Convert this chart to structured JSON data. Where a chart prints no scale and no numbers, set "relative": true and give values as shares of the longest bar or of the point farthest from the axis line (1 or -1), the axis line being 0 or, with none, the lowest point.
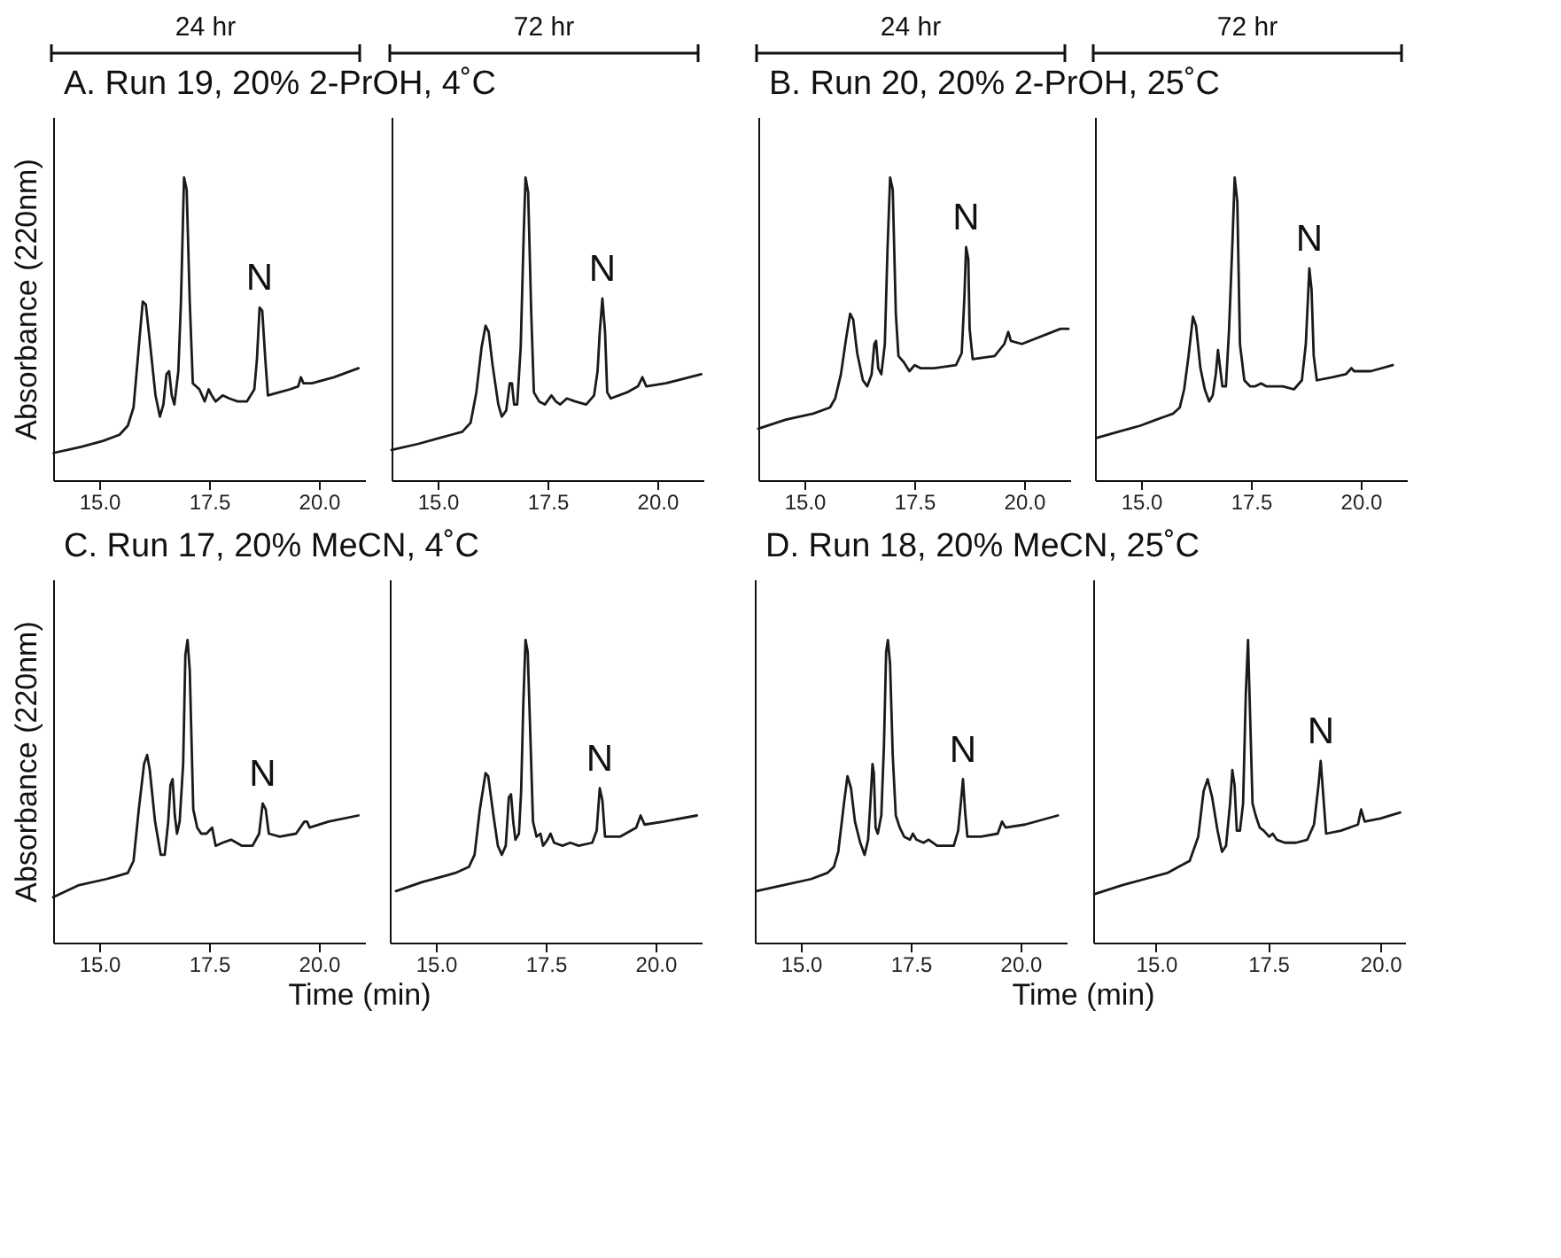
{
  "chart_data": [
    {
      "type": "line",
      "title": "A. Run 19, 20% 2-PrOH, 4˚C",
      "ylabel": "Absorbance (220nm)",
      "relative": true,
      "tick_labels": "x",
      "xlim": [
        13.95,
        21.05
      ],
      "xticks": [
        {
          "value": 15,
          "label": "15.0"
        },
        {
          "value": 17.5,
          "label": "17.5"
        },
        {
          "value": 20,
          "label": "20.0"
        }
      ],
      "annotations": [
        "24 hr",
        {
          "text": "N",
          "x": 18.65,
          "y": 0.57
        }
      ],
      "x": [
        13.96,
        14.59,
        15.09,
        15.46,
        15.65,
        15.78,
        15.9,
        15.99,
        16.06,
        16.15,
        16.28,
        16.38,
        16.46,
        16.53,
        16.59,
        16.65,
        16.71,
        16.8,
        16.86,
        16.93,
        16.99,
        17.06,
        17.13,
        17.28,
        17.4,
        17.49,
        17.56,
        17.65,
        17.81,
        17.96,
        18.15,
        18.36,
        18.53,
        18.59,
        18.65,
        18.71,
        18.78,
        18.84,
        19.09,
        19.34,
        19.53,
        19.59,
        19.65,
        19.84,
        20.34,
        20.9
      ],
      "series": [
        {
          "color": "#1a1a1a",
          "values": [
            0.09,
            0.11,
            0.13,
            0.15,
            0.18,
            0.24,
            0.44,
            0.59,
            0.58,
            0.46,
            0.28,
            0.21,
            0.25,
            0.35,
            0.36,
            0.28,
            0.25,
            0.36,
            0.59,
            1,
            0.96,
            0.59,
            0.32,
            0.3,
            0.26,
            0.3,
            0.28,
            0.26,
            0.28,
            0.27,
            0.26,
            0.26,
            0.3,
            0.4,
            0.57,
            0.56,
            0.4,
            0.28,
            0.29,
            0.3,
            0.31,
            0.34,
            0.32,
            0.32,
            0.34,
            0.37
          ]
        }
      ]
    },
    {
      "type": "line",
      "relative": true,
      "tick_labels": "x",
      "xlim": [
        13.95,
        21.05
      ],
      "xticks": [
        {
          "value": 15,
          "label": "15.0"
        },
        {
          "value": 17.5,
          "label": "17.5"
        },
        {
          "value": 20,
          "label": "20.0"
        }
      ],
      "annotations": [
        "72 hr",
        {
          "text": "N",
          "x": 18.75,
          "y": 0.6
        }
      ],
      "x": [
        13.95,
        14.56,
        15.06,
        15.31,
        15.56,
        15.75,
        15.88,
        16.0,
        16.09,
        16.16,
        16.25,
        16.38,
        16.46,
        16.56,
        16.64,
        16.69,
        16.74,
        16.81,
        16.89,
        16.96,
        17.0,
        17.06,
        17.13,
        17.19,
        17.31,
        17.44,
        17.59,
        17.69,
        17.79,
        17.94,
        18.13,
        18.38,
        18.56,
        18.64,
        18.69,
        18.75,
        18.81,
        18.86,
        18.94,
        19.31,
        19.56,
        19.66,
        19.75,
        20.19,
        21.0
      ],
      "series": [
        {
          "color": "#1a1a1a",
          "values": [
            0.1,
            0.12,
            0.14,
            0.15,
            0.16,
            0.19,
            0.29,
            0.44,
            0.51,
            0.49,
            0.38,
            0.25,
            0.21,
            0.23,
            0.32,
            0.32,
            0.25,
            0.25,
            0.44,
            0.82,
            1,
            0.95,
            0.55,
            0.29,
            0.26,
            0.25,
            0.28,
            0.26,
            0.25,
            0.27,
            0.26,
            0.25,
            0.28,
            0.36,
            0.49,
            0.6,
            0.49,
            0.29,
            0.27,
            0.29,
            0.31,
            0.34,
            0.31,
            0.32,
            0.35
          ]
        }
      ]
    },
    {
      "type": "line",
      "title": "B. Run 20, 20% 2-PrOH, 25˚C",
      "relative": true,
      "tick_labels": "x",
      "xlim": [
        13.95,
        21.05
      ],
      "xticks": [
        {
          "value": 15,
          "label": "15.0"
        },
        {
          "value": 17.5,
          "label": "17.5"
        },
        {
          "value": 20,
          "label": "20.0"
        }
      ],
      "annotations": [
        "24 hr",
        {
          "text": "N",
          "x": 18.68,
          "y": 0.77
        }
      ],
      "x": [
        13.95,
        14.58,
        15.2,
        15.58,
        15.7,
        15.83,
        15.95,
        16.04,
        16.11,
        16.2,
        16.33,
        16.43,
        16.53,
        16.59,
        16.63,
        16.68,
        16.75,
        16.83,
        16.89,
        16.95,
        17.01,
        17.08,
        17.14,
        17.26,
        17.39,
        17.51,
        17.64,
        17.95,
        18.45,
        18.58,
        18.64,
        18.68,
        18.73,
        18.76,
        18.83,
        19.33,
        19.55,
        19.64,
        19.7,
        19.95,
        20.83,
        21.01
      ],
      "series": [
        {
          "color": "#1a1a1a",
          "values": [
            0.17,
            0.2,
            0.22,
            0.24,
            0.27,
            0.35,
            0.47,
            0.55,
            0.53,
            0.42,
            0.33,
            0.31,
            0.35,
            0.45,
            0.46,
            0.37,
            0.35,
            0.45,
            0.76,
            1,
            0.96,
            0.55,
            0.41,
            0.39,
            0.36,
            0.38,
            0.37,
            0.37,
            0.38,
            0.42,
            0.6,
            0.77,
            0.73,
            0.5,
            0.4,
            0.41,
            0.45,
            0.49,
            0.46,
            0.45,
            0.5,
            0.5
          ]
        }
      ]
    },
    {
      "type": "line",
      "relative": true,
      "tick_labels": "x",
      "xlim": [
        13.95,
        21.05
      ],
      "xticks": [
        {
          "value": 15,
          "label": "15.0"
        },
        {
          "value": 17.5,
          "label": "17.5"
        },
        {
          "value": 20,
          "label": "20.0"
        }
      ],
      "annotations": [
        "72 hr",
        {
          "text": "N",
          "x": 18.83,
          "y": 0.7
        }
      ],
      "x": [
        14.0,
        14.48,
        14.98,
        15.35,
        15.54,
        15.73,
        15.88,
        15.98,
        16.08,
        16.18,
        16.25,
        16.35,
        16.45,
        16.55,
        16.63,
        16.7,
        16.75,
        16.8,
        16.85,
        16.93,
        17.0,
        17.08,
        17.13,
        17.19,
        17.25,
        17.35,
        17.48,
        17.6,
        17.73,
        17.85,
        18.04,
        18.23,
        18.48,
        18.66,
        18.75,
        18.83,
        18.88,
        18.93,
        19.0,
        19.35,
        19.66,
        19.79,
        19.85,
        20.23,
        20.73
      ],
      "series": [
        {
          "color": "#1a1a1a",
          "values": [
            0.14,
            0.16,
            0.18,
            0.2,
            0.21,
            0.22,
            0.24,
            0.3,
            0.41,
            0.54,
            0.51,
            0.37,
            0.3,
            0.26,
            0.28,
            0.35,
            0.43,
            0.37,
            0.31,
            0.31,
            0.49,
            0.79,
            1,
            0.92,
            0.45,
            0.33,
            0.31,
            0.31,
            0.32,
            0.31,
            0.31,
            0.31,
            0.3,
            0.33,
            0.45,
            0.7,
            0.63,
            0.41,
            0.33,
            0.34,
            0.35,
            0.37,
            0.36,
            0.36,
            0.38
          ]
        }
      ]
    },
    {
      "type": "line",
      "title": "C. Run 17, 20% MeCN, 4˚C",
      "xlabel": "Time (min)",
      "ylabel": "Absorbance (220nm)",
      "relative": true,
      "tick_labels": "x",
      "xlim": [
        13.95,
        21.05
      ],
      "xticks": [
        {
          "value": 15,
          "label": "15.0"
        },
        {
          "value": 17.5,
          "label": "17.5"
        },
        {
          "value": 20,
          "label": "20.0"
        }
      ],
      "annotations": [
        {
          "text": "N",
          "x": 18.72,
          "y": 0.46
        }
      ],
      "x": [
        13.95,
        14.54,
        15.16,
        15.41,
        15.65,
        15.78,
        15.9,
        16.02,
        16.09,
        16.15,
        16.27,
        16.4,
        16.49,
        16.57,
        16.62,
        16.67,
        16.72,
        16.77,
        16.83,
        16.91,
        16.96,
        17.01,
        17.06,
        17.14,
        17.23,
        17.32,
        17.44,
        17.57,
        17.65,
        17.81,
        18.0,
        18.25,
        18.49,
        18.64,
        18.72,
        18.79,
        18.86,
        19.11,
        19.48,
        19.67,
        19.73,
        19.79,
        20.22,
        20.9
      ],
      "series": [
        {
          "color": "#1a1a1a",
          "values": [
            0.15,
            0.19,
            0.21,
            0.22,
            0.23,
            0.27,
            0.44,
            0.59,
            0.62,
            0.57,
            0.4,
            0.29,
            0.29,
            0.4,
            0.52,
            0.54,
            0.42,
            0.36,
            0.4,
            0.59,
            0.95,
            1,
            0.9,
            0.44,
            0.38,
            0.36,
            0.36,
            0.38,
            0.32,
            0.33,
            0.34,
            0.32,
            0.32,
            0.36,
            0.46,
            0.44,
            0.36,
            0.35,
            0.36,
            0.4,
            0.4,
            0.38,
            0.4,
            0.42
          ]
        }
      ]
    },
    {
      "type": "line",
      "relative": true,
      "tick_labels": "x",
      "xlim": [
        13.95,
        21.05
      ],
      "xticks": [
        {
          "value": 15,
          "label": "15.0"
        },
        {
          "value": 17.5,
          "label": "17.5"
        },
        {
          "value": 20,
          "label": "20.0"
        }
      ],
      "annotations": [
        {
          "text": "N",
          "x": 18.73,
          "y": 0.51
        }
      ],
      "x": [
        14.09,
        14.69,
        15.19,
        15.44,
        15.75,
        15.88,
        16.0,
        16.13,
        16.19,
        16.31,
        16.41,
        16.5,
        16.59,
        16.66,
        16.71,
        16.76,
        16.81,
        16.89,
        16.94,
        16.99,
        17.04,
        17.09,
        17.14,
        17.21,
        17.29,
        17.38,
        17.44,
        17.54,
        17.61,
        17.69,
        17.88,
        18.06,
        18.25,
        18.56,
        18.66,
        18.73,
        18.79,
        18.85,
        19.19,
        19.56,
        19.66,
        19.75,
        20.19,
        20.94
      ],
      "series": [
        {
          "color": "#1a1a1a",
          "values": [
            0.17,
            0.2,
            0.22,
            0.23,
            0.25,
            0.29,
            0.44,
            0.56,
            0.55,
            0.42,
            0.32,
            0.29,
            0.32,
            0.48,
            0.49,
            0.4,
            0.34,
            0.36,
            0.5,
            0.79,
            1,
            0.96,
            0.73,
            0.4,
            0.35,
            0.36,
            0.32,
            0.34,
            0.36,
            0.33,
            0.32,
            0.33,
            0.32,
            0.33,
            0.37,
            0.51,
            0.47,
            0.35,
            0.35,
            0.38,
            0.42,
            0.39,
            0.4,
            0.42
          ]
        }
      ]
    },
    {
      "type": "line",
      "title": "D. Run 18, 20% MeCN, 25˚C",
      "xlabel": "Time (min)",
      "relative": true,
      "tick_labels": "x",
      "xlim": [
        13.95,
        21.05
      ],
      "xticks": [
        {
          "value": 15,
          "label": "15.0"
        },
        {
          "value": 17.5,
          "label": "17.5"
        },
        {
          "value": 20,
          "label": "20.0"
        }
      ],
      "annotations": [
        {
          "text": "N",
          "x": 18.69,
          "y": 0.54
        }
      ],
      "x": [
        13.98,
        14.6,
        15.23,
        15.6,
        15.75,
        15.85,
        15.98,
        16.06,
        16.14,
        16.23,
        16.35,
        16.45,
        16.53,
        16.58,
        16.63,
        16.66,
        16.7,
        16.75,
        16.83,
        16.89,
        16.94,
        16.98,
        17.03,
        17.09,
        17.16,
        17.25,
        17.35,
        17.48,
        17.55,
        17.63,
        17.79,
        17.91,
        18.1,
        18.48,
        18.58,
        18.64,
        18.69,
        18.74,
        18.79,
        19.1,
        19.48,
        19.58,
        19.66,
        20.1,
        20.85
      ],
      "series": [
        {
          "color": "#1a1a1a",
          "values": [
            0.17,
            0.19,
            0.21,
            0.23,
            0.25,
            0.3,
            0.46,
            0.55,
            0.51,
            0.4,
            0.33,
            0.29,
            0.34,
            0.46,
            0.59,
            0.56,
            0.38,
            0.36,
            0.42,
            0.65,
            0.96,
            1,
            0.92,
            0.62,
            0.42,
            0.38,
            0.35,
            0.34,
            0.36,
            0.34,
            0.33,
            0.34,
            0.32,
            0.32,
            0.37,
            0.46,
            0.54,
            0.43,
            0.35,
            0.35,
            0.36,
            0.4,
            0.38,
            0.39,
            0.42
          ]
        }
      ]
    },
    {
      "type": "line",
      "relative": true,
      "tick_labels": "x",
      "xlim": [
        13.6,
        20.55
      ],
      "xticks": [
        {
          "value": 15,
          "label": "15.0"
        },
        {
          "value": 17.5,
          "label": "17.5"
        },
        {
          "value": 20,
          "label": "20.0"
        }
      ],
      "annotations": [
        {
          "text": "N",
          "x": 18.67,
          "y": 0.6
        }
      ],
      "x": [
        13.62,
        14.25,
        14.75,
        15.25,
        15.5,
        15.75,
        15.94,
        16.06,
        16.15,
        16.25,
        16.37,
        16.47,
        16.56,
        16.65,
        16.7,
        16.75,
        16.8,
        16.87,
        16.94,
        17.0,
        17.05,
        17.1,
        17.15,
        17.22,
        17.31,
        17.4,
        17.52,
        17.6,
        17.69,
        17.87,
        18.12,
        18.37,
        18.52,
        18.62,
        18.67,
        18.72,
        18.79,
        19.12,
        19.5,
        19.57,
        19.65,
        20.0,
        20.44
      ],
      "series": [
        {
          "color": "#1a1a1a",
          "values": [
            0.16,
            0.19,
            0.21,
            0.23,
            0.25,
            0.27,
            0.35,
            0.5,
            0.54,
            0.48,
            0.37,
            0.3,
            0.32,
            0.46,
            0.57,
            0.52,
            0.37,
            0.37,
            0.46,
            0.82,
            1,
            0.73,
            0.46,
            0.42,
            0.38,
            0.37,
            0.35,
            0.36,
            0.34,
            0.33,
            0.33,
            0.34,
            0.39,
            0.52,
            0.6,
            0.5,
            0.36,
            0.37,
            0.39,
            0.44,
            0.4,
            0.41,
            0.43
          ]
        }
      ]
    }
  ]
}
